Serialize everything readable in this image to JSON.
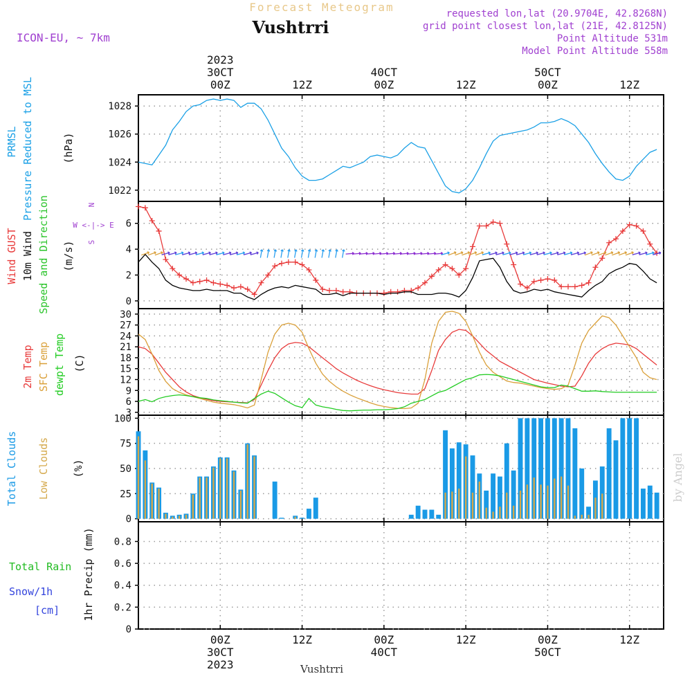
{
  "header": {
    "super_title": "Forecast Meteogram",
    "location": "Vushtrri",
    "model": "ICON-EU, ~ 7km",
    "requested": "requested lon,lat (20.9704E, 42.8268N)",
    "grid_point": "grid point closest lon,lat (21E, 42.8125N)",
    "point_altitude": "Point Altitude 531m",
    "model_altitude": "Model Point Altitude 558m",
    "footer_location": "Vushtrri",
    "credit": "by Angel"
  },
  "colors": {
    "pressure": "#1aa0e6",
    "gust": "#e83a3a",
    "wind": "#000000",
    "dir_label": "#2bc42b",
    "temp2m": "#e83a3a",
    "sfc": "#daa03a",
    "dewpt": "#22cc22",
    "total_clouds": "#1a9ae6",
    "low_clouds": "#d4a84a",
    "total_rain": "#22bb22",
    "snow": "#3344dd",
    "purple": "#a040d0",
    "grid": "#999999"
  },
  "time_axis": {
    "top_ticks": [
      {
        "t": 12,
        "l1": "2023",
        "l2": "30CT",
        "l3": "00Z"
      },
      {
        "t": 24,
        "l1": "",
        "l2": "",
        "l3": "12Z"
      },
      {
        "t": 36,
        "l1": "",
        "l2": "40CT",
        "l3": "00Z"
      },
      {
        "t": 48,
        "l1": "",
        "l2": "",
        "l3": "12Z"
      },
      {
        "t": 60,
        "l1": "",
        "l2": "50CT",
        "l3": "00Z"
      },
      {
        "t": 72,
        "l1": "",
        "l2": "",
        "l3": "12Z"
      }
    ],
    "bottom_ticks": [
      {
        "t": 12,
        "l1": "00Z",
        "l2": "30CT",
        "l3": "2023"
      },
      {
        "t": 24,
        "l1": "12Z",
        "l2": "",
        "l3": ""
      },
      {
        "t": 36,
        "l1": "00Z",
        "l2": "40CT",
        "l3": ""
      },
      {
        "t": 48,
        "l1": "12Z",
        "l2": "",
        "l3": ""
      },
      {
        "t": 60,
        "l1": "00Z",
        "l2": "50CT",
        "l3": ""
      },
      {
        "t": 72,
        "l1": "12Z",
        "l2": "",
        "l3": ""
      }
    ],
    "tmin": 0,
    "tmax": 77
  },
  "chart_data": [
    {
      "type": "line",
      "panel": "pressure",
      "ylabel_left": [
        "PRMSL",
        "Pressure Reduced to MSL"
      ],
      "ylabel_unit": "(hPa)",
      "ylim": [
        1021.2,
        1028.8
      ],
      "yticks": [
        1022,
        1024,
        1026,
        1028
      ],
      "x": [
        0,
        1,
        2,
        3,
        4,
        5,
        6,
        7,
        8,
        9,
        10,
        11,
        12,
        13,
        14,
        15,
        16,
        17,
        18,
        19,
        20,
        21,
        22,
        23,
        24,
        25,
        26,
        27,
        28,
        29,
        30,
        31,
        32,
        33,
        34,
        35,
        36,
        37,
        38,
        39,
        40,
        41,
        42,
        43,
        44,
        45,
        46,
        47,
        48,
        49,
        50,
        51,
        52,
        53,
        54,
        55,
        56,
        57,
        58,
        59,
        60,
        61,
        62,
        63,
        64,
        65,
        66,
        67,
        68,
        69,
        70,
        71,
        72,
        73,
        74,
        75,
        76
      ],
      "series": [
        {
          "name": "PRMSL",
          "values": [
            1024.0,
            1023.9,
            1023.8,
            1024.5,
            1025.2,
            1026.3,
            1026.9,
            1027.6,
            1028.0,
            1028.1,
            1028.4,
            1028.5,
            1028.4,
            1028.5,
            1028.4,
            1027.9,
            1028.2,
            1028.2,
            1027.8,
            1027.0,
            1026.0,
            1025.0,
            1024.4,
            1023.6,
            1023.0,
            1022.7,
            1022.7,
            1022.8,
            1023.1,
            1023.4,
            1023.7,
            1023.6,
            1023.8,
            1024.0,
            1024.4,
            1024.5,
            1024.4,
            1024.3,
            1024.5,
            1025.0,
            1025.4,
            1025.1,
            1025.0,
            1024.1,
            1023.2,
            1022.3,
            1021.9,
            1021.8,
            1022.1,
            1022.7,
            1023.6,
            1024.6,
            1025.5,
            1025.9,
            1026.0,
            1026.1,
            1026.2,
            1026.3,
            1026.5,
            1026.8,
            1026.8,
            1026.9,
            1027.1,
            1026.9,
            1026.6,
            1026.0,
            1025.4,
            1024.6,
            1023.9,
            1023.3,
            1022.8,
            1022.7,
            1023.0,
            1023.7,
            1024.2,
            1024.7,
            1024.9
          ]
        }
      ]
    },
    {
      "type": "line",
      "panel": "wind",
      "ylabel_left": [
        "Wind GUST",
        "10m Wind",
        "Speed and Direction"
      ],
      "ylabel_unit": "(m/s)",
      "ylim": [
        -0.6,
        7.7
      ],
      "yticks": [
        0,
        2,
        4,
        6
      ],
      "compass": [
        "N",
        "W <-|-> E",
        "S"
      ],
      "x": [
        0,
        1,
        2,
        3,
        4,
        5,
        6,
        7,
        8,
        9,
        10,
        11,
        12,
        13,
        14,
        15,
        16,
        17,
        18,
        19,
        20,
        21,
        22,
        23,
        24,
        25,
        26,
        27,
        28,
        29,
        30,
        31,
        32,
        33,
        34,
        35,
        36,
        37,
        38,
        39,
        40,
        41,
        42,
        43,
        44,
        45,
        46,
        47,
        48,
        49,
        50,
        51,
        52,
        53,
        54,
        55,
        56,
        57,
        58,
        59,
        60,
        61,
        62,
        63,
        64,
        65,
        66,
        67,
        68,
        69,
        70,
        71,
        72,
        73,
        74,
        75,
        76
      ],
      "series": [
        {
          "name": "Wind GUST",
          "values": [
            7.3,
            7.2,
            6.2,
            5.4,
            3.2,
            2.5,
            2.0,
            1.7,
            1.4,
            1.5,
            1.6,
            1.4,
            1.3,
            1.2,
            1.0,
            1.1,
            0.9,
            0.5,
            1.4,
            2.0,
            2.7,
            2.9,
            3.0,
            3.0,
            2.8,
            2.4,
            1.6,
            0.9,
            0.8,
            0.8,
            0.7,
            0.7,
            0.6,
            0.6,
            0.6,
            0.6,
            0.6,
            0.7,
            0.7,
            0.8,
            0.8,
            1.0,
            1.4,
            1.9,
            2.4,
            2.8,
            2.5,
            2.0,
            2.5,
            4.2,
            5.8,
            5.8,
            6.1,
            6.0,
            4.4,
            2.8,
            1.3,
            1.0,
            1.5,
            1.6,
            1.7,
            1.6,
            1.1,
            1.1,
            1.1,
            1.2,
            1.4,
            2.6,
            3.3,
            4.5,
            4.8,
            5.4,
            5.9,
            5.8,
            5.4,
            4.4,
            3.7
          ]
        },
        {
          "name": "10m Wind",
          "values": [
            3.0,
            3.6,
            3.0,
            2.5,
            1.6,
            1.2,
            1.0,
            0.9,
            0.8,
            0.8,
            0.9,
            0.8,
            0.8,
            0.8,
            0.6,
            0.6,
            0.3,
            0.1,
            0.5,
            0.8,
            1.0,
            1.1,
            1.0,
            1.2,
            1.1,
            1.0,
            0.9,
            0.5,
            0.5,
            0.6,
            0.4,
            0.6,
            0.6,
            0.6,
            0.6,
            0.6,
            0.5,
            0.6,
            0.6,
            0.7,
            0.7,
            0.5,
            0.5,
            0.5,
            0.6,
            0.6,
            0.5,
            0.3,
            0.8,
            1.8,
            3.1,
            3.2,
            3.3,
            2.6,
            1.5,
            0.8,
            0.6,
            0.7,
            0.9,
            0.8,
            0.9,
            0.7,
            0.6,
            0.5,
            0.4,
            0.3,
            0.8,
            1.2,
            1.5,
            2.1,
            2.4,
            2.6,
            2.9,
            2.8,
            2.3,
            1.7,
            1.4
          ]
        }
      ]
    },
    {
      "type": "line",
      "panel": "temperature",
      "ylabel_left": [
        "2m Temp",
        "SFC Temp",
        "dewpt Temp"
      ],
      "ylabel_unit": "(C)",
      "ylim": [
        2.2,
        31.5
      ],
      "yticks": [
        3,
        6,
        9,
        12,
        15,
        18,
        21,
        24,
        27,
        30
      ],
      "x": [
        0,
        1,
        2,
        3,
        4,
        5,
        6,
        7,
        8,
        9,
        10,
        11,
        12,
        13,
        14,
        15,
        16,
        17,
        18,
        19,
        20,
        21,
        22,
        23,
        24,
        25,
        26,
        27,
        28,
        29,
        30,
        31,
        32,
        33,
        34,
        35,
        36,
        37,
        38,
        39,
        40,
        41,
        42,
        43,
        44,
        45,
        46,
        47,
        48,
        49,
        50,
        51,
        52,
        53,
        54,
        55,
        56,
        57,
        58,
        59,
        60,
        61,
        62,
        63,
        64,
        65,
        66,
        67,
        68,
        69,
        70,
        71,
        72,
        73,
        74,
        75,
        76
      ],
      "series": [
        {
          "name": "2m Temp",
          "values": [
            21.0,
            20.5,
            19.0,
            16.5,
            14.0,
            12.0,
            10.0,
            8.6,
            7.6,
            7.0,
            6.6,
            6.2,
            6.0,
            5.9,
            5.8,
            5.7,
            5.6,
            6.5,
            10.5,
            14.5,
            18.0,
            20.5,
            21.8,
            22.2,
            22.0,
            21.0,
            19.5,
            18.0,
            16.5,
            15.0,
            13.8,
            12.8,
            11.8,
            11.0,
            10.3,
            9.7,
            9.2,
            8.8,
            8.4,
            8.2,
            8.0,
            8.0,
            9.5,
            14.5,
            20.0,
            23.0,
            25.0,
            25.8,
            25.5,
            24.0,
            22.0,
            20.0,
            18.5,
            17.0,
            16.0,
            15.0,
            14.0,
            13.0,
            12.0,
            11.5,
            11.0,
            10.6,
            10.2,
            10.0,
            10.2,
            13.0,
            16.5,
            19.0,
            20.5,
            21.5,
            22.0,
            21.8,
            21.5,
            20.5,
            19.0,
            17.5,
            16.0
          ]
        },
        {
          "name": "SFC Temp",
          "values": [
            24.5,
            23.0,
            19.0,
            14.5,
            11.5,
            9.5,
            8.5,
            7.8,
            7.3,
            6.8,
            6.3,
            5.8,
            5.5,
            5.3,
            5.1,
            4.7,
            4.2,
            5.0,
            12.0,
            19.5,
            24.5,
            27.0,
            27.5,
            27.0,
            25.0,
            20.5,
            16.5,
            13.5,
            11.5,
            10.0,
            8.8,
            7.8,
            7.0,
            6.3,
            5.6,
            5.0,
            4.6,
            4.3,
            4.1,
            4.0,
            4.2,
            5.5,
            12.0,
            22.0,
            28.0,
            30.5,
            30.8,
            30.2,
            28.0,
            24.0,
            19.5,
            16.0,
            14.0,
            12.8,
            11.6,
            11.2,
            11.0,
            10.6,
            10.2,
            9.8,
            9.5,
            9.3,
            9.5,
            10.5,
            16.0,
            22.0,
            25.5,
            27.5,
            29.5,
            29.0,
            27.0,
            24.0,
            21.0,
            18.0,
            14.0,
            12.5,
            12.0
          ]
        },
        {
          "name": "dewpt Temp",
          "values": [
            6.0,
            6.5,
            5.9,
            6.8,
            7.3,
            7.6,
            7.8,
            7.6,
            7.3,
            7.0,
            6.8,
            6.4,
            6.2,
            6.0,
            5.8,
            5.6,
            5.5,
            6.8,
            8.0,
            8.8,
            8.2,
            7.0,
            5.8,
            4.8,
            4.3,
            6.8,
            5.0,
            4.5,
            4.2,
            3.8,
            3.5,
            3.4,
            3.5,
            3.6,
            3.6,
            3.7,
            3.7,
            3.8,
            4.0,
            4.5,
            5.5,
            6.0,
            6.5,
            7.5,
            8.5,
            9.0,
            10.0,
            11.0,
            12.0,
            12.5,
            13.3,
            13.4,
            13.3,
            13.0,
            12.5,
            12.0,
            11.5,
            11.0,
            10.5,
            10.0,
            9.8,
            9.8,
            10.5,
            10.2,
            9.5,
            8.8,
            8.8,
            8.9,
            8.7,
            8.6,
            8.5,
            8.5,
            8.5,
            8.5,
            8.5,
            8.5,
            8.5
          ]
        }
      ]
    },
    {
      "type": "bar",
      "panel": "clouds",
      "ylabel_left": [
        "Total Clouds",
        "Low Clouds"
      ],
      "ylabel_unit": "(%)",
      "ylim": [
        -3,
        103
      ],
      "yticks": [
        0,
        25,
        50,
        75,
        100
      ],
      "x": [
        0,
        1,
        2,
        3,
        4,
        5,
        6,
        7,
        8,
        9,
        10,
        11,
        12,
        13,
        14,
        15,
        16,
        17,
        18,
        19,
        20,
        21,
        22,
        23,
        24,
        25,
        26,
        27,
        28,
        29,
        30,
        31,
        32,
        33,
        34,
        35,
        36,
        37,
        38,
        39,
        40,
        41,
        42,
        43,
        44,
        45,
        46,
        47,
        48,
        49,
        50,
        51,
        52,
        53,
        54,
        55,
        56,
        57,
        58,
        59,
        60,
        61,
        62,
        63,
        64,
        65,
        66,
        67,
        68,
        69,
        70,
        71,
        72,
        73,
        74,
        75,
        76
      ],
      "series": [
        {
          "name": "Total Clouds",
          "values": [
            87,
            68,
            36,
            31,
            6,
            3,
            4,
            5,
            25,
            42,
            42,
            52,
            61,
            61,
            48,
            29,
            75,
            63,
            0,
            0,
            37,
            1,
            0,
            3,
            1,
            10,
            21,
            0,
            0,
            0,
            0,
            0,
            0,
            0,
            0,
            0,
            0,
            0,
            0,
            0,
            4,
            13,
            9,
            9,
            4,
            88,
            70,
            76,
            74,
            63,
            45,
            28,
            45,
            42,
            75,
            48,
            100,
            100,
            100,
            100,
            100,
            100,
            100,
            100,
            90,
            50,
            12,
            38,
            52,
            90,
            78,
            100,
            100,
            100,
            30,
            33,
            26
          ]
        },
        {
          "name": "Low Clouds",
          "values": [
            82,
            58,
            35,
            30,
            5,
            2,
            3,
            4,
            24,
            41,
            41,
            51,
            60,
            60,
            47,
            28,
            74,
            62,
            0,
            0,
            0,
            0,
            0,
            2,
            0,
            0,
            0,
            0,
            0,
            0,
            0,
            0,
            0,
            0,
            0,
            0,
            0,
            0,
            0,
            0,
            0,
            0,
            0,
            0,
            0,
            26,
            27,
            30,
            62,
            26,
            37,
            11,
            7,
            12,
            26,
            13,
            28,
            34,
            41,
            34,
            33,
            40,
            42,
            33,
            3,
            4,
            4,
            21,
            25,
            0,
            0,
            0,
            0,
            0,
            0,
            0,
            0
          ]
        }
      ]
    },
    {
      "type": "bar",
      "panel": "precip",
      "ylabel_left_lines": [
        "Total  Rain",
        "Snow/1h",
        "[cm]"
      ],
      "ylabel_unit": "1hr Precip (mm)",
      "ylim": [
        0,
        0.98
      ],
      "yticks": [
        0,
        0.2,
        0.4,
        0.6,
        0.8
      ],
      "series": [
        {
          "name": "Total Rain",
          "values": []
        },
        {
          "name": "Snow/1h",
          "values": []
        }
      ]
    }
  ]
}
